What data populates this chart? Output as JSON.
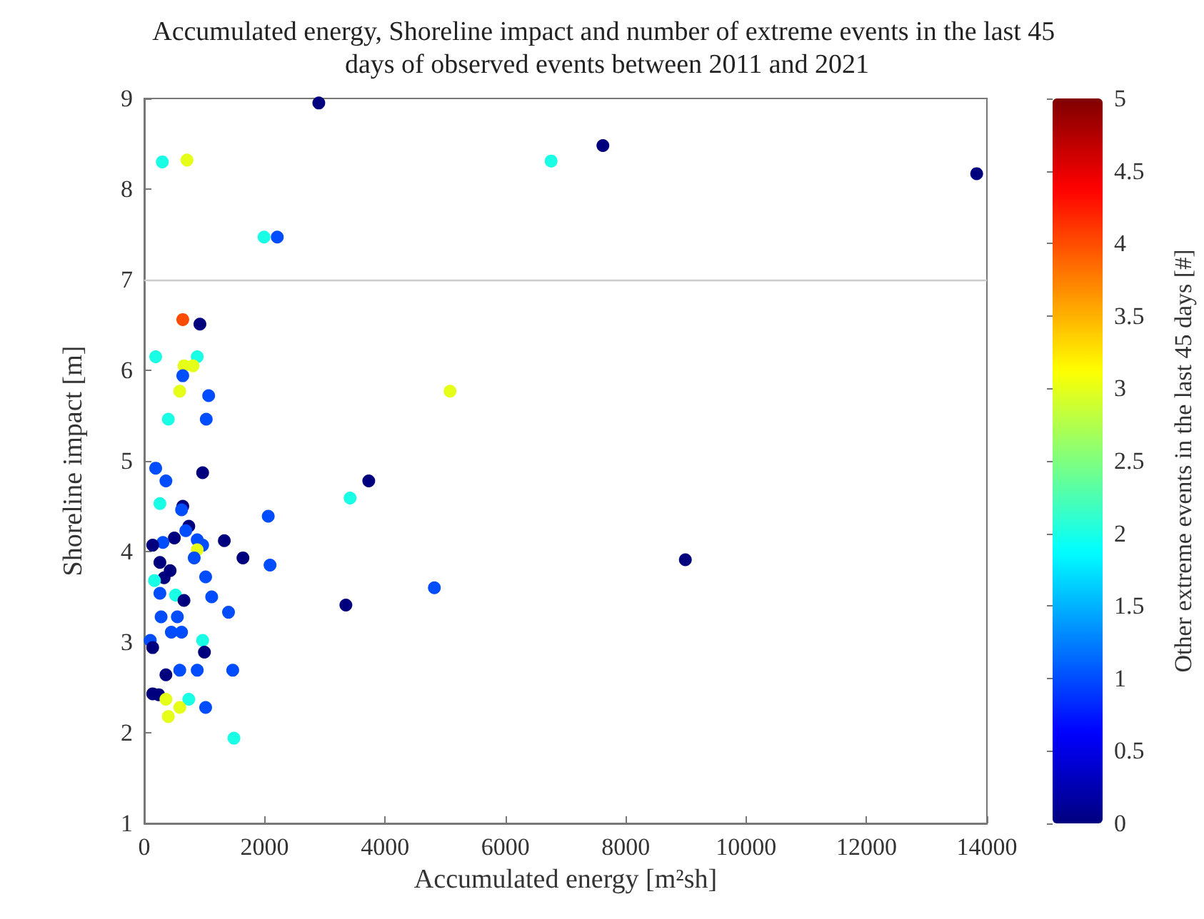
{
  "chart_data": {
    "type": "scatter",
    "title": "Accumulated energy, Shoreline impact and number of extreme events in the last 45 days of observed events between 2011 and 2021",
    "xlabel": "Accumulated energy [m²sh]",
    "ylabel": "Shoreline impact [m]",
    "clabel": "Other extreme events in the last 45 days [#]",
    "x": [
      2900,
      300,
      710,
      1990,
      2210,
      640,
      925,
      190,
      880,
      660,
      810,
      640,
      590,
      1070,
      400,
      1030,
      190,
      360,
      970,
      260,
      640,
      620,
      2060,
      740,
      690,
      500,
      1330,
      310,
      140,
      880,
      970,
      880,
      1640,
      830,
      2090,
      260,
      430,
      330,
      170,
      1020,
      260,
      520,
      1120,
      660,
      1400,
      3350,
      280,
      550,
      450,
      620,
      100,
      140,
      970,
      1000,
      360,
      590,
      880,
      1470,
      140,
      240,
      360,
      740,
      590,
      1020,
      400,
      1490,
      7620,
      6760,
      13830,
      5080,
      8990,
      4820,
      3420,
      3730
    ],
    "values": [
      8.95,
      8.3,
      8.32,
      7.47,
      7.47,
      6.56,
      6.51,
      6.15,
      6.15,
      6.05,
      6.05,
      5.94,
      5.77,
      5.72,
      5.46,
      5.46,
      4.92,
      4.78,
      4.87,
      4.53,
      4.5,
      4.46,
      4.39,
      4.28,
      4.23,
      4.15,
      4.12,
      4.1,
      4.07,
      4.13,
      4.07,
      4.02,
      3.93,
      3.93,
      3.85,
      3.88,
      3.79,
      3.71,
      3.68,
      3.72,
      3.54,
      3.52,
      3.5,
      3.46,
      3.33,
      3.41,
      3.28,
      3.28,
      3.11,
      3.11,
      3.02,
      2.94,
      3.02,
      2.89,
      2.64,
      2.69,
      2.69,
      2.69,
      2.43,
      2.42,
      2.37,
      2.37,
      2.28,
      2.28,
      2.18,
      1.94,
      8.48,
      8.31,
      8.17,
      5.77,
      3.91,
      3.6,
      4.59,
      4.78
    ],
    "cvalues": [
      0,
      2,
      3,
      2,
      1,
      4,
      0,
      2,
      2,
      3,
      3,
      1,
      3,
      1,
      2,
      1,
      1,
      1,
      0,
      2,
      0,
      1,
      1,
      0,
      1,
      0,
      0,
      1,
      0,
      1,
      1,
      3,
      0,
      1,
      1,
      0,
      0,
      0,
      2,
      1,
      1,
      2,
      1,
      0,
      1,
      0,
      1,
      1,
      1,
      1,
      1,
      0,
      2,
      0,
      0,
      1,
      1,
      1,
      0,
      0,
      3,
      2,
      3,
      1,
      3,
      2,
      0,
      2,
      0,
      3,
      0,
      1,
      2,
      0
    ],
    "marker": "circle",
    "grid": false,
    "xlim": [
      0,
      14000
    ],
    "xticks": [
      0,
      2000,
      4000,
      6000,
      8000,
      10000,
      12000,
      14000
    ],
    "ylim": [
      1,
      9
    ],
    "yticks": [
      1,
      2,
      3,
      4,
      5,
      6,
      7,
      8,
      9
    ],
    "clim": [
      0,
      5
    ],
    "cticks": [
      0,
      0.5,
      1,
      1.5,
      2,
      2.5,
      3,
      3.5,
      4,
      4.5,
      5
    ],
    "ref_lines": [
      {
        "axis": "y",
        "value": 7,
        "color": "#cccccc"
      }
    ]
  }
}
